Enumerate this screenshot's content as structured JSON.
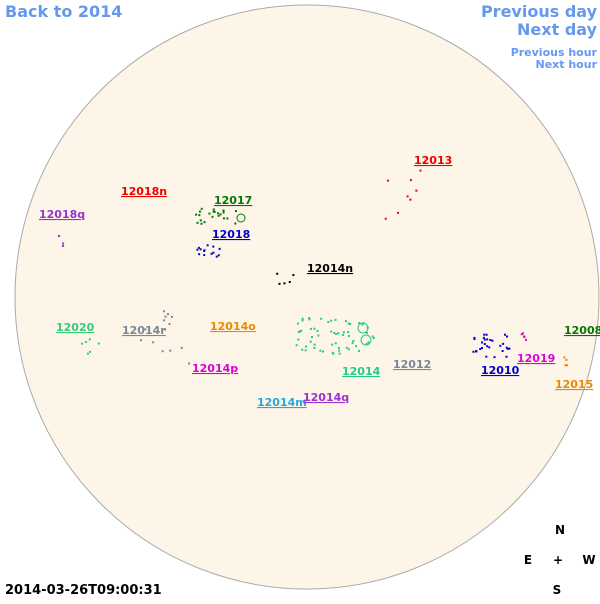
{
  "nav": {
    "back": "Back to 2014",
    "previous_day": "Previous day",
    "next_day": "Next day",
    "previous_hour": "Previous hour",
    "next_hour": "Next hour"
  },
  "regions": [
    "12013",
    "12018n",
    "12017",
    "12018q",
    "12018",
    "12014n",
    "12020",
    "12014r",
    "12014o",
    "12008",
    "12012",
    "12019",
    "12014p",
    "12014",
    "12010",
    "12015",
    "12014m",
    "12014q"
  ],
  "timestamp": "2014-03-26T09:00:31",
  "compass": {
    "north": "N",
    "east": "E",
    "center": "+",
    "west": "W",
    "south": "S"
  }
}
